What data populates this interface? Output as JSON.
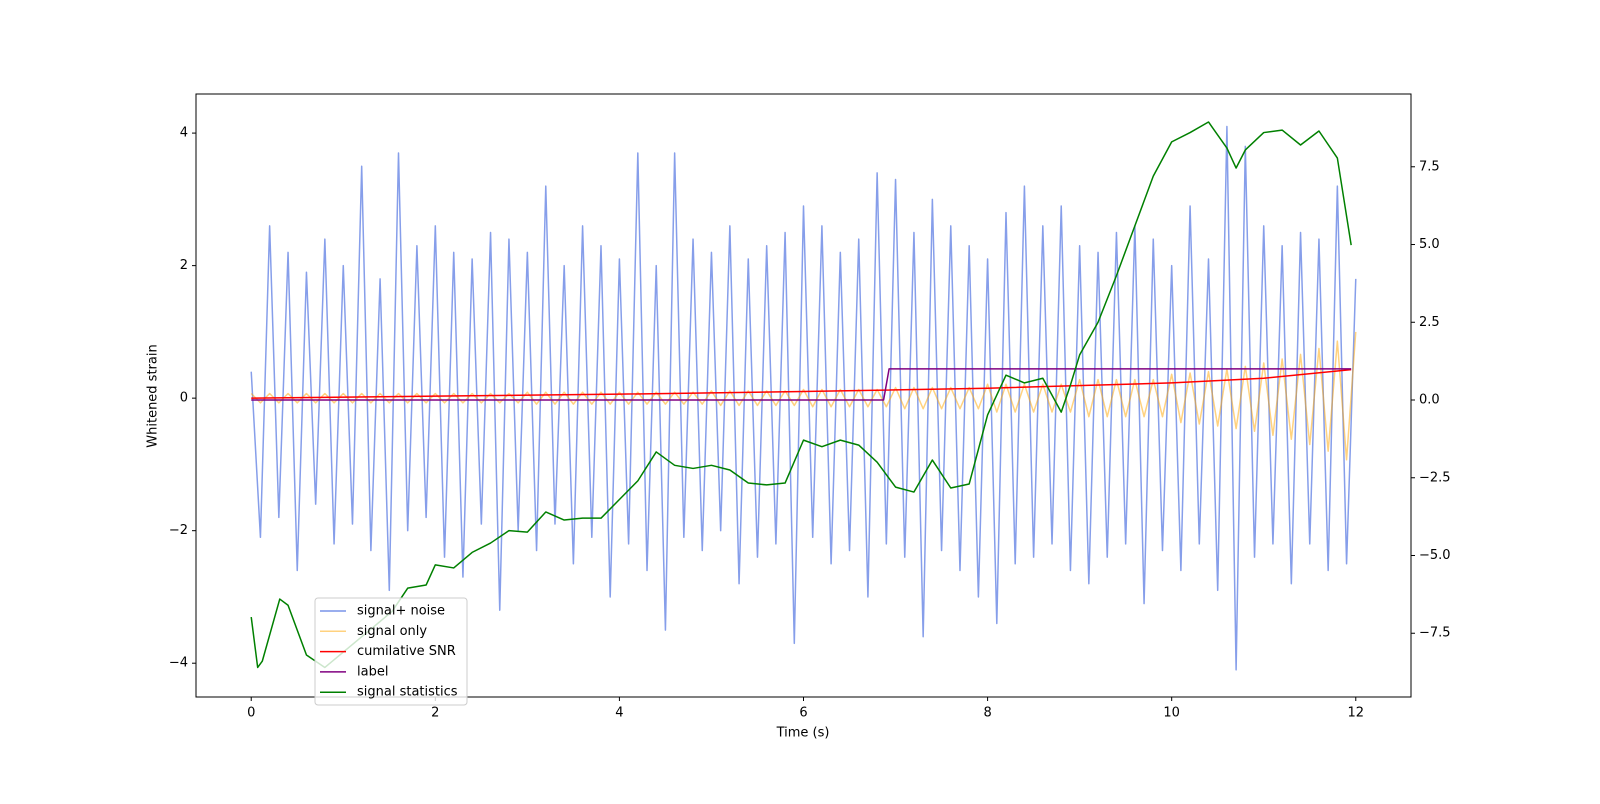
{
  "chart_data": {
    "type": "line",
    "xlabel": "Time (s)",
    "ylabel": "Whitened strain",
    "xlim": [
      -0.6,
      12.6
    ],
    "ylim": [
      -4.51,
      4.59
    ],
    "y2lim": [
      -9.55,
      9.84
    ],
    "xticks": [
      0,
      2,
      4,
      6,
      8,
      10,
      12
    ],
    "yticks": [
      {
        "value": -4,
        "label": "−4"
      },
      {
        "value": -2,
        "label": "−2"
      },
      0,
      2,
      4
    ],
    "y2ticks": [
      {
        "value": -7.5,
        "label": "−7.5"
      },
      {
        "value": -5,
        "label": "−5.0"
      },
      {
        "value": -2.5,
        "label": "−2.5"
      },
      {
        "value": 0,
        "label": "0.0"
      },
      2.5,
      {
        "value": 5,
        "label": "5.0"
      },
      7.5
    ],
    "x": [
      0,
      0.1,
      0.2,
      0.3,
      0.4,
      0.5,
      0.6,
      0.7,
      0.8,
      0.9,
      1,
      1.1,
      1.2,
      1.3,
      1.4,
      1.5,
      1.6,
      1.7,
      1.8,
      1.9,
      2,
      2.1,
      2.2,
      2.3,
      2.4,
      2.5,
      2.6,
      2.7,
      2.8,
      2.9,
      3,
      3.1,
      3.2,
      3.3,
      3.4,
      3.5,
      3.6,
      3.7,
      3.8,
      3.9,
      4,
      4.1,
      4.2,
      4.3,
      4.4,
      4.5,
      4.6,
      4.7,
      4.8,
      4.9,
      5,
      5.1,
      5.2,
      5.3,
      5.4,
      5.5,
      5.6,
      5.7,
      5.8,
      5.9,
      6,
      6.1,
      6.2,
      6.3,
      6.4,
      6.5,
      6.6,
      6.7,
      6.8,
      6.9,
      7,
      7.1,
      7.2,
      7.3,
      7.4,
      7.5,
      7.6,
      7.7,
      7.8,
      7.9,
      8,
      8.1,
      8.2,
      8.3,
      8.4,
      8.5,
      8.6,
      8.7,
      8.8,
      8.9,
      9,
      9.1,
      9.2,
      9.3,
      9.4,
      9.5,
      9.6,
      9.7,
      9.8,
      9.9,
      10,
      10.1,
      10.2,
      10.3,
      10.4,
      10.5,
      10.6,
      10.7,
      10.8,
      10.9,
      11,
      11.1,
      11.2,
      11.3,
      11.4,
      11.5,
      11.6,
      11.7,
      11.8,
      11.9,
      12
    ],
    "series": [
      {
        "name": "signal+ noise",
        "color": "#7993e8",
        "values": [
          0.4,
          -2.1,
          2.6,
          -1.8,
          2.2,
          -2.6,
          1.9,
          -1.6,
          2.4,
          -2.2,
          2.0,
          -1.9,
          3.5,
          -2.3,
          1.8,
          -2.9,
          3.7,
          -2.0,
          2.3,
          -1.8,
          2.6,
          -2.4,
          2.2,
          -2.7,
          2.1,
          -1.9,
          2.5,
          -3.2,
          2.4,
          -2.0,
          2.2,
          -2.3,
          3.2,
          -1.9,
          2.0,
          -2.5,
          2.6,
          -2.1,
          2.3,
          -3.0,
          2.1,
          -2.2,
          3.7,
          -2.6,
          2.0,
          -3.5,
          3.7,
          -2.1,
          2.4,
          -2.3,
          2.2,
          -2.0,
          2.6,
          -2.8,
          2.1,
          -2.4,
          2.3,
          -2.2,
          2.5,
          -3.7,
          2.9,
          -2.1,
          2.6,
          -2.5,
          2.2,
          -2.3,
          2.4,
          -3.0,
          3.4,
          -2.2,
          3.3,
          -2.4,
          2.5,
          -3.6,
          3.0,
          -2.3,
          2.6,
          -2.6,
          2.3,
          -3.0,
          2.1,
          -3.4,
          2.8,
          -2.5,
          3.2,
          -2.4,
          2.6,
          -2.2,
          2.9,
          -2.6,
          2.3,
          -2.8,
          2.2,
          -2.4,
          2.5,
          -2.2,
          2.6,
          -3.1,
          2.4,
          -2.3,
          2.0,
          -2.6,
          2.9,
          -2.2,
          2.1,
          -2.9,
          4.1,
          -4.1,
          3.8,
          -2.4,
          2.6,
          -2.2,
          2.3,
          -2.8,
          2.5,
          -2.2,
          2.4,
          -2.6,
          3.2,
          -2.5,
          1.8
        ]
      },
      {
        "name": "signal only",
        "color": "#ffa500",
        "values": [
          0.07,
          -0.07,
          0.07,
          -0.07,
          0.07,
          -0.07,
          0.07,
          -0.07,
          0.07,
          -0.07,
          0.07,
          -0.07,
          0.07,
          -0.07,
          0.07,
          -0.07,
          0.07,
          -0.07,
          0.07,
          -0.07,
          0.07,
          -0.07,
          0.07,
          -0.07,
          0.07,
          -0.07,
          0.07,
          -0.07,
          0.07,
          -0.07,
          0.09,
          -0.09,
          0.09,
          -0.09,
          0.09,
          -0.09,
          0.09,
          -0.09,
          0.09,
          -0.09,
          0.09,
          -0.09,
          0.09,
          -0.09,
          0.09,
          -0.09,
          0.09,
          -0.09,
          0.09,
          -0.09,
          0.11,
          -0.11,
          0.11,
          -0.11,
          0.11,
          -0.11,
          0.11,
          -0.11,
          0.11,
          -0.11,
          0.13,
          -0.13,
          0.13,
          -0.13,
          0.13,
          -0.13,
          0.13,
          -0.13,
          0.13,
          -0.13,
          0.16,
          -0.16,
          0.16,
          -0.16,
          0.16,
          -0.16,
          0.16,
          -0.16,
          0.16,
          -0.16,
          0.21,
          -0.21,
          0.21,
          -0.21,
          0.21,
          -0.21,
          0.21,
          -0.21,
          0.21,
          -0.21,
          0.28,
          -0.28,
          0.28,
          -0.28,
          0.28,
          -0.28,
          0.28,
          -0.28,
          0.28,
          -0.28,
          0.36,
          -0.37,
          0.38,
          -0.39,
          0.4,
          -0.42,
          0.44,
          -0.46,
          0.48,
          -0.5,
          0.53,
          -0.56,
          0.59,
          -0.62,
          0.66,
          -0.7,
          0.75,
          -0.8,
          0.86,
          -0.93,
          1.0
        ]
      },
      {
        "name": "cumilative SNR",
        "color": "#ff0000",
        "x": [
          0,
          2,
          4,
          6,
          8,
          10,
          11,
          11.95
        ],
        "values": [
          0,
          0.03,
          0.06,
          0.1,
          0.15,
          0.23,
          0.3,
          0.43
        ]
      },
      {
        "name": "label",
        "color": "#800080",
        "axis": "y2",
        "x": [
          0,
          6.87,
          6.93,
          11.95
        ],
        "values": [
          0,
          0,
          1,
          1
        ]
      },
      {
        "name": "signal statistics",
        "color": "#008000",
        "axis": "y2",
        "x": [
          0,
          0.07,
          0.12,
          0.31,
          0.4,
          0.6,
          0.8,
          1.53,
          1.7,
          1.9,
          2.0,
          2.2,
          2.4,
          2.6,
          2.8,
          3.0,
          3.2,
          3.4,
          3.6,
          3.8,
          4.0,
          4.2,
          4.4,
          4.6,
          4.8,
          5.0,
          5.2,
          5.4,
          5.6,
          5.8,
          6.0,
          6.2,
          6.4,
          6.6,
          6.8,
          7.0,
          7.2,
          7.4,
          7.6,
          7.8,
          8.0,
          8.2,
          8.4,
          8.6,
          8.8,
          8.9,
          9.0,
          9.2,
          9.4,
          9.6,
          9.8,
          10.0,
          10.2,
          10.4,
          10.6,
          10.7,
          10.8,
          11.0,
          11.2,
          11.4,
          11.6,
          11.8,
          11.95
        ],
        "values": [
          -6.98,
          -8.6,
          -8.4,
          -6.4,
          -6.6,
          -8.2,
          -8.6,
          -6.8,
          -6.05,
          -5.95,
          -5.3,
          -5.4,
          -4.9,
          -4.6,
          -4.2,
          -4.25,
          -3.6,
          -3.86,
          -3.8,
          -3.8,
          -3.2,
          -2.6,
          -1.67,
          -2.1,
          -2.2,
          -2.1,
          -2.25,
          -2.67,
          -2.73,
          -2.67,
          -1.29,
          -1.5,
          -1.29,
          -1.45,
          -2.0,
          -2.8,
          -2.96,
          -1.93,
          -2.83,
          -2.7,
          -0.48,
          0.8,
          0.55,
          0.7,
          -0.39,
          0.48,
          1.45,
          2.5,
          4.0,
          5.6,
          7.2,
          8.3,
          8.6,
          8.94,
          8.1,
          7.46,
          8.04,
          8.6,
          8.68,
          8.2,
          8.65,
          7.78,
          4.98
        ]
      }
    ]
  }
}
